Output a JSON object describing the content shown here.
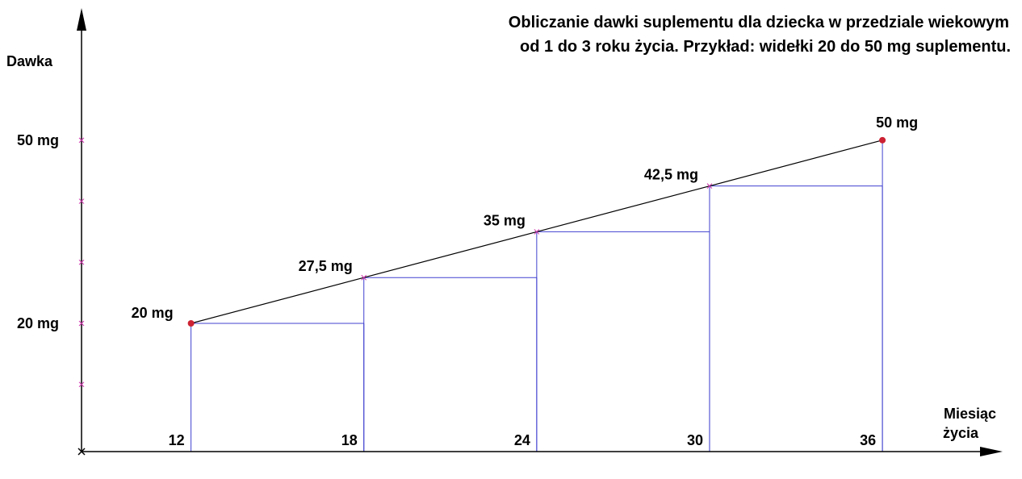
{
  "chart_data": {
    "type": "line",
    "title_lines": [
      "Obliczanie dawki suplementu dla dziecka w przedziale wiekowym",
      "od 1 do 3 roku życia.   Przykład: widełki 20 do 50 mg suplementu."
    ],
    "ylabel": "Dawka",
    "xlabel_lines": [
      "Miesiąc",
      "życia"
    ],
    "x": [
      12,
      18,
      24,
      30,
      36
    ],
    "y": [
      20,
      27.5,
      35,
      42.5,
      50
    ],
    "x_tick_labels": [
      "12",
      "18",
      "24",
      "30",
      "36"
    ],
    "y_tick_labels": [
      {
        "value": 50,
        "label": "50 mg"
      },
      {
        "value": 20,
        "label": "20 mg"
      }
    ],
    "y_minor_ticks": [
      10,
      20,
      30,
      40,
      50
    ],
    "data_labels": [
      "20 mg",
      "27,5 mg",
      "35 mg",
      "42,5 mg",
      "50 mg"
    ],
    "endpoint_indices": [
      0,
      4
    ],
    "xlim": [
      8.2,
      39.5
    ],
    "ylim": [
      -1,
      69
    ],
    "step_bars": true,
    "grid": false,
    "colors": {
      "axis": "#000000",
      "line": "#000000",
      "steps": "#4040d0",
      "endpoint": "#cc2233",
      "marker": "#cc33aa"
    }
  }
}
